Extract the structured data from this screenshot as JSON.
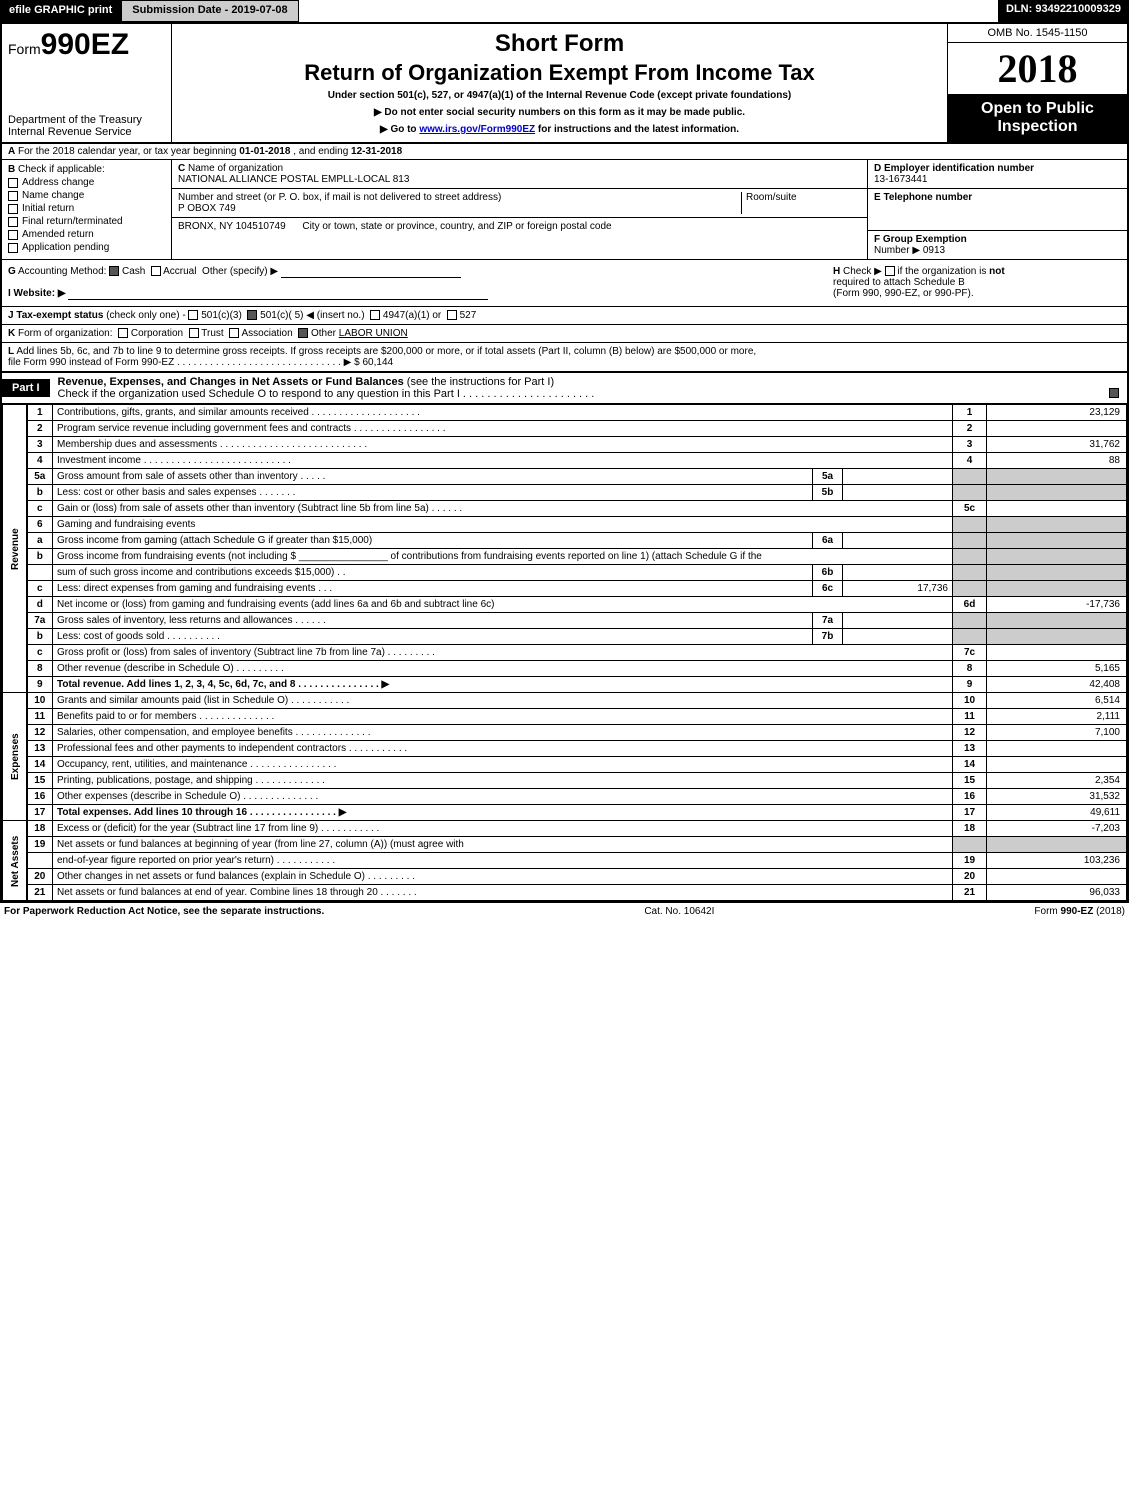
{
  "topbar": {
    "efile": "efile GRAPHIC print",
    "submission": "Submission Date - 2019-07-08",
    "dln": "DLN: 93492210009329"
  },
  "header": {
    "form_prefix": "Form",
    "form_no": "990EZ",
    "dept": "Department of the Treasury",
    "irs": "Internal Revenue Service",
    "short_form": "Short Form",
    "title": "Return of Organization Exempt From Income Tax",
    "subtitle": "Under section 501(c), 527, or 4947(a)(1) of the Internal Revenue Code (except private foundations)",
    "warn1": "▶ Do not enter social security numbers on this form as it may be made public.",
    "warn2_pre": "▶ Go to ",
    "warn2_link": "www.irs.gov/Form990EZ",
    "warn2_post": " for instructions and the latest information.",
    "omb": "OMB No. 1545-1150",
    "year": "2018",
    "open": "Open to Public Inspection"
  },
  "rowA": {
    "label": "A",
    "text_pre": "For the 2018 calendar year, or tax year beginning ",
    "begin": "01-01-2018",
    "mid": ", and ending ",
    "end": "12-31-2018"
  },
  "boxB": {
    "label": "B",
    "title": "Check if applicable:",
    "items": [
      "Address change",
      "Name change",
      "Initial return",
      "Final return/terminated",
      "Amended return",
      "Application pending"
    ]
  },
  "boxC": {
    "label": "C",
    "name_label": "Name of organization",
    "name": "NATIONAL ALLIANCE POSTAL EMPLL-LOCAL 813",
    "street_label": "Number and street (or P. O. box, if mail is not delivered to street address)",
    "street": "P OBOX 749",
    "room_label": "Room/suite",
    "city_label": "City or town, state or province, country, and ZIP or foreign postal code",
    "city": "BRONX, NY  104510749"
  },
  "boxD": {
    "label": "D Employer identification number",
    "value": "13-1673441"
  },
  "boxE": {
    "label": "E Telephone number",
    "value": ""
  },
  "boxF": {
    "label": "F Group Exemption",
    "num_label": "Number  ▶",
    "value": "0913"
  },
  "rowG": {
    "label": "G",
    "text": "Accounting Method:",
    "cash": "Cash",
    "accrual": "Accrual",
    "other": "Other (specify) ▶"
  },
  "rowH": {
    "label": "H",
    "text1": "Check ▶",
    "text2": "if the organization is",
    "not": "not",
    "text3": "required to attach Schedule B",
    "text4": "(Form 990, 990-EZ, or 990-PF)."
  },
  "rowI": {
    "label": "I Website: ▶",
    "value": ""
  },
  "rowJ": {
    "label": "J Tax-exempt status",
    "text": "(check only one) -",
    "opts": [
      "501(c)(3)",
      "501(c)( 5) ◀ (insert no.)",
      "4947(a)(1) or",
      "527"
    ]
  },
  "rowK": {
    "label": "K",
    "text": "Form of organization:",
    "opts": [
      "Corporation",
      "Trust",
      "Association",
      "Other"
    ],
    "other_val": "LABOR UNION"
  },
  "rowL": {
    "label": "L",
    "text1": "Add lines 5b, 6c, and 7b to line 9 to determine gross receipts. If gross receipts are $200,000 or more, or if total assets (Part II, column (B) below) are $500,000 or more,",
    "text2": "file Form 990 instead of Form 990-EZ",
    "dots": " . . . . . . . . . . . . . . . . . . . . . . . . . . . . . . ▶ ",
    "amount": "$ 60,144"
  },
  "part1": {
    "label": "Part I",
    "title": "Revenue, Expenses, and Changes in Net Assets or Fund Balances",
    "title_light": "(see the instructions for Part I)",
    "check_line": "Check if the organization used Schedule O to respond to any question in this Part I . . . . . . . . . . . . . . . . . . . . . ."
  },
  "sections": {
    "revenue": "Revenue",
    "expenses": "Expenses",
    "netassets": "Net Assets"
  },
  "lines": [
    {
      "n": "1",
      "d": "Contributions, gifts, grants, and similar amounts received . . . . . . . . . . . . . . . . . . . .",
      "rn": "1",
      "rv": "23,129"
    },
    {
      "n": "2",
      "d": "Program service revenue including government fees and contracts . . . . . . . . . . . . . . . . .",
      "rn": "2",
      "rv": ""
    },
    {
      "n": "3",
      "d": "Membership dues and assessments . . . . . . . . . . . . . . . . . . . . . . . . . . .",
      "rn": "3",
      "rv": "31,762"
    },
    {
      "n": "4",
      "d": "Investment income . . . . . . . . . . . . . . . . . . . . . . . . . . .",
      "rn": "4",
      "rv": "88"
    },
    {
      "n": "5a",
      "d": "Gross amount from sale of assets other than inventory . . . . .",
      "mn": "5a",
      "mv": "",
      "rn": "",
      "rv": "",
      "gray": true
    },
    {
      "n": "b",
      "d": "Less: cost or other basis and sales expenses . . . . . . .",
      "mn": "5b",
      "mv": "",
      "rn": "",
      "rv": "",
      "gray": true
    },
    {
      "n": "c",
      "d": "Gain or (loss) from sale of assets other than inventory (Subtract line 5b from line 5a)                    . . . . . .",
      "rn": "5c",
      "rv": ""
    },
    {
      "n": "6",
      "d": "Gaming and fundraising events",
      "rn": "",
      "rv": "",
      "gray": true
    },
    {
      "n": "a",
      "d": "Gross income from gaming (attach Schedule G if greater than $15,000)",
      "mn": "6a",
      "mv": "",
      "rn": "",
      "rv": "",
      "gray": true
    },
    {
      "n": "b",
      "d": "Gross income from fundraising events (not including $ ________________ of contributions from fundraising events reported on line 1) (attach Schedule G if the",
      "rn": "",
      "rv": "",
      "gray": true,
      "nomid": true
    },
    {
      "n": "",
      "d": "sum of such gross income and contributions exceeds $15,000)          . .",
      "mn": "6b",
      "mv": "",
      "rn": "",
      "rv": "",
      "gray": true
    },
    {
      "n": "c",
      "d": "Less: direct expenses from gaming and fundraising events               . . .",
      "mn": "6c",
      "mv": "17,736",
      "rn": "",
      "rv": "",
      "gray": true
    },
    {
      "n": "d",
      "d": "Net income or (loss) from gaming and fundraising events (add lines 6a and 6b and subtract line 6c)",
      "rn": "6d",
      "rv": "-17,736"
    },
    {
      "n": "7a",
      "d": "Gross sales of inventory, less returns and allowances               . . . . . .",
      "mn": "7a",
      "mv": "",
      "rn": "",
      "rv": "",
      "gray": true
    },
    {
      "n": "b",
      "d": "Less: cost of goods sold                                     . . . . . . . . . .",
      "mn": "7b",
      "mv": "",
      "rn": "",
      "rv": "",
      "gray": true
    },
    {
      "n": "c",
      "d": "Gross profit or (loss) from sales of inventory (Subtract line 7b from line 7a)                    . . . . . . . . .",
      "rn": "7c",
      "rv": ""
    },
    {
      "n": "8",
      "d": "Other revenue (describe in Schedule O)                                                    . . . . . . . . .",
      "rn": "8",
      "rv": "5,165"
    },
    {
      "n": "9",
      "d": "Total revenue. Add lines 1, 2, 3, 4, 5c, 6d, 7c, and 8                . . . . . . . . . . . . . . . ▶",
      "rn": "9",
      "rv": "42,408",
      "bold": true
    }
  ],
  "exp_lines": [
    {
      "n": "10",
      "d": "Grants and similar amounts paid (list in Schedule O)                         . . . . . . . . . . .",
      "rn": "10",
      "rv": "6,514"
    },
    {
      "n": "11",
      "d": "Benefits paid to or for members                                             . . . . . . . . . . . . . .",
      "rn": "11",
      "rv": "2,111"
    },
    {
      "n": "12",
      "d": "Salaries, other compensation, and employee benefits              . . . . . . . . . . . . . .",
      "rn": "12",
      "rv": "7,100"
    },
    {
      "n": "13",
      "d": "Professional fees and other payments to independent contractors          . . . . . . . . . . .",
      "rn": "13",
      "rv": ""
    },
    {
      "n": "14",
      "d": "Occupancy, rent, utilities, and maintenance               . . . . . . . . . . . . . . . .",
      "rn": "14",
      "rv": ""
    },
    {
      "n": "15",
      "d": "Printing, publications, postage, and shipping                        . . . . . . . . . . . . .",
      "rn": "15",
      "rv": "2,354"
    },
    {
      "n": "16",
      "d": "Other expenses (describe in Schedule O)                                      . . . . . . . . . . . . . .",
      "rn": "16",
      "rv": "31,532"
    },
    {
      "n": "17",
      "d": "Total expenses. Add lines 10 through 16                         . . . . . . . . . . . . . . . . ▶",
      "rn": "17",
      "rv": "49,611",
      "bold": true
    }
  ],
  "na_lines": [
    {
      "n": "18",
      "d": "Excess or (deficit) for the year (Subtract line 17 from line 9)                       . . . . . . . . . . .",
      "rn": "18",
      "rv": "-7,203"
    },
    {
      "n": "19",
      "d": "Net assets or fund balances at beginning of year (from line 27, column (A)) (must agree with",
      "rn": "",
      "rv": "",
      "gray": true
    },
    {
      "n": "",
      "d": "end-of-year figure reported on prior year's return)                              . . . . . . . . . . .",
      "rn": "19",
      "rv": "103,236"
    },
    {
      "n": "20",
      "d": "Other changes in net assets or fund balances (explain in Schedule O)              . . . . . . . . .",
      "rn": "20",
      "rv": ""
    },
    {
      "n": "21",
      "d": "Net assets or fund balances at end of year. Combine lines 18 through 20                  . . . . . . .",
      "rn": "21",
      "rv": "96,033"
    }
  ],
  "footer": {
    "left": "For Paperwork Reduction Act Notice, see the separate instructions.",
    "center": "Cat. No. 10642I",
    "right": "Form 990-EZ (2018)"
  },
  "colors": {
    "black": "#000000",
    "gray_btn": "#cccccc",
    "gray_cell": "#cccccc",
    "link": "#0000cc"
  }
}
